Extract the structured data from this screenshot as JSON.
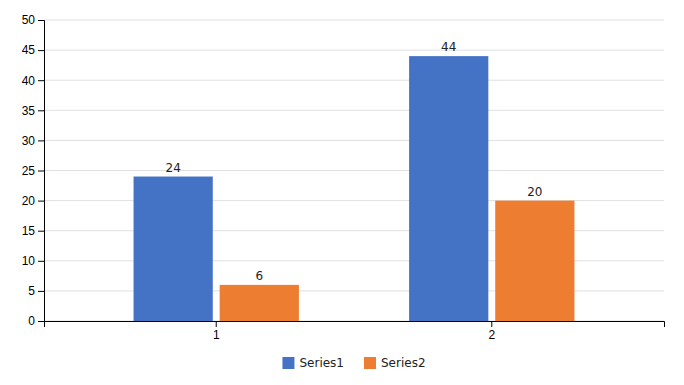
{
  "chart_data": {
    "type": "bar",
    "categories": [
      "1",
      "2"
    ],
    "series": [
      {
        "name": "Series1",
        "color": "#4472C4",
        "values": [
          24,
          44
        ]
      },
      {
        "name": "Series2",
        "color": "#ED7D31",
        "values": [
          6,
          20
        ]
      }
    ],
    "ylim": [
      0,
      50
    ],
    "yticks": [
      0,
      5,
      10,
      15,
      20,
      25,
      30,
      35,
      40,
      45,
      50
    ],
    "grid": true,
    "legend": "bottom",
    "data_labels": true
  }
}
